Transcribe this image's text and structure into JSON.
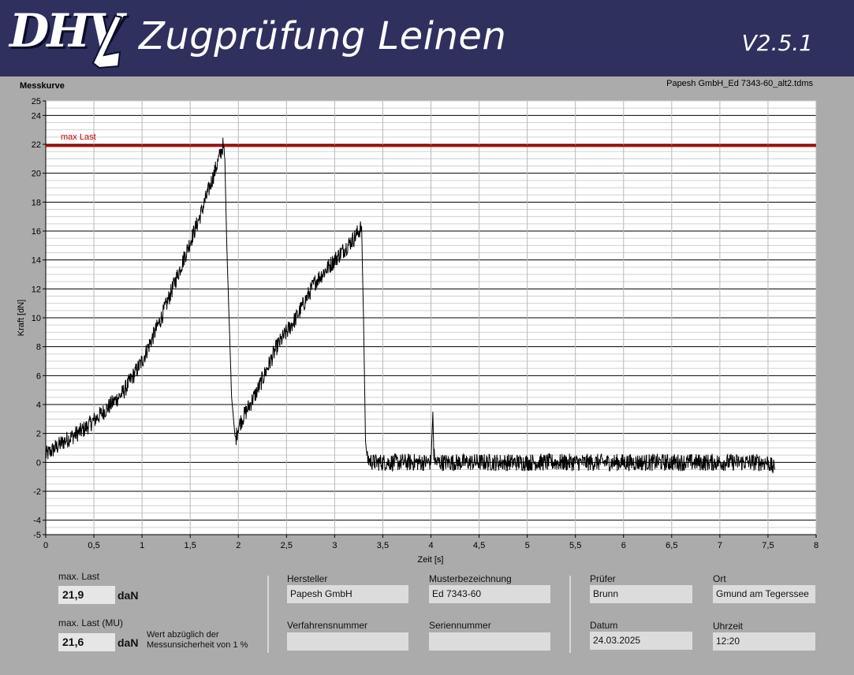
{
  "header": {
    "logo_text": "DHV",
    "title": "Zugprüfung Leinen",
    "version": "V2.5.1",
    "colors": {
      "header_bg": "#30305f",
      "text": "#ffffff"
    }
  },
  "chart_panel": {
    "label": "Messkurve",
    "filename": "Papesh GmbH_Ed 7343-60_alt2.tdms"
  },
  "chart_data": {
    "type": "line",
    "xlabel": "Zeit [s]",
    "ylabel": "Kraft [dN]",
    "xlim": [
      0,
      8
    ],
    "ylim": [
      -5,
      25
    ],
    "x_ticks": [
      0,
      0.5,
      1,
      1.5,
      2,
      2.5,
      3,
      3.5,
      4,
      4.5,
      5,
      5.5,
      6,
      6.5,
      7,
      7.5,
      8
    ],
    "x_tick_labels": [
      "0",
      "0,5",
      "1",
      "1,5",
      "2",
      "2,5",
      "3",
      "3,5",
      "4",
      "4,5",
      "5",
      "5,5",
      "6",
      "6,5",
      "7",
      "7,5",
      "8"
    ],
    "y_ticks": [
      -5,
      -4,
      -2,
      0,
      2,
      4,
      6,
      8,
      10,
      12,
      14,
      16,
      18,
      20,
      22,
      24,
      25
    ],
    "y_tick_labels": [
      "-5",
      "-4",
      "-2",
      "0",
      "2",
      "4",
      "6",
      "8",
      "10",
      "12",
      "14",
      "16",
      "18",
      "20",
      "22",
      "24",
      "25"
    ],
    "grid": true,
    "reference_line": {
      "label": "max Last",
      "y": 21.9,
      "color": "#c00000"
    },
    "series": [
      {
        "color": "#000000",
        "x": [
          0,
          0.2,
          0.4,
          0.6,
          0.8,
          1.0,
          1.2,
          1.4,
          1.6,
          1.75,
          1.84,
          1.86,
          1.88,
          1.93,
          1.97,
          2.0,
          2.2,
          2.4,
          2.6,
          2.8,
          3.0,
          3.2,
          3.28,
          3.3,
          3.32,
          3.34,
          3.4,
          3.6,
          3.8,
          4.0,
          4.02,
          4.03,
          4.05,
          4.2,
          4.6,
          5.0,
          5.5,
          6.0,
          6.5,
          7.0,
          7.5,
          7.57
        ],
        "y": [
          0.5,
          1.5,
          2.3,
          3.5,
          4.8,
          7.0,
          10.0,
          13.5,
          17.0,
          20.0,
          21.9,
          21.0,
          15.0,
          4.5,
          1.5,
          2.5,
          5.0,
          8.0,
          10.0,
          12.5,
          14.0,
          15.5,
          16.3,
          10.0,
          1.5,
          0.2,
          0.0,
          0.0,
          0.0,
          0.0,
          3.5,
          0.5,
          0.0,
          0.0,
          0.0,
          0.0,
          0.0,
          0.0,
          0.0,
          0.0,
          0.0,
          -0.5
        ],
        "noise_amplitude": 0.6
      }
    ]
  },
  "bottom": {
    "max_last": {
      "label": "max. Last",
      "value": "21,9",
      "unit": "daN"
    },
    "max_last_mu": {
      "label": "max. Last (MU)",
      "value": "21,6",
      "unit": "daN",
      "note": "Wert abzüglich der Messunsicherheit von 1 %"
    },
    "hersteller": {
      "label": "Hersteller",
      "value": "Papesh GmbH"
    },
    "musterbezeichnung": {
      "label": "Musterbezeichnung",
      "value": "Ed 7343-60"
    },
    "verfahrensnummer": {
      "label": "Verfahrensnummer",
      "value": ""
    },
    "seriennummer": {
      "label": "Seriennummer",
      "value": ""
    },
    "pruefer": {
      "label": "Prüfer",
      "value": "Brunn"
    },
    "ort": {
      "label": "Ort",
      "value": "Gmund am Tegerssee"
    },
    "datum": {
      "label": "Datum",
      "value": "24.03.2025"
    },
    "uhrzeit": {
      "label": "Uhrzeit",
      "value": "12:20"
    }
  }
}
